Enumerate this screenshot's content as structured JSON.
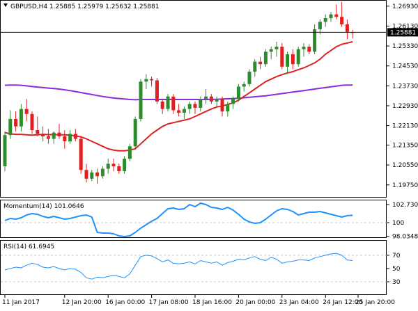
{
  "window": {
    "symbol_line": "GBPUSD,H4  1.25885 1.25979 1.25632 1.25881",
    "collapse_icon": "triangle-down-icon"
  },
  "colors": {
    "bull": "#2e8b2e",
    "bear": "#e02020",
    "ma_fast": "#e02020",
    "ma_slow": "#8a2be2",
    "indicator": "#1e90ff",
    "grid": "#c8c8c8",
    "price_badge_bg": "#000000",
    "price_badge_text": "#ffffff"
  },
  "chart_data": [
    {
      "type": "candlestick",
      "name": "main",
      "ylim": [
        1.1924,
        1.2715
      ],
      "y_ticks": [
        "1.26930",
        "1.26130",
        "1.25330",
        "1.24530",
        "1.23730",
        "1.22930",
        "1.22130",
        "1.21350",
        "1.20550",
        "1.19750"
      ],
      "current_price": "1.25881",
      "candles": [
        [
          1.205,
          1.219,
          1.203,
          1.2175
        ],
        [
          1.2175,
          1.2275,
          1.216,
          1.224
        ],
        [
          1.224,
          1.227,
          1.219,
          1.221
        ],
        [
          1.221,
          1.23,
          1.219,
          1.228
        ],
        [
          1.228,
          1.232,
          1.223,
          1.226
        ],
        [
          1.226,
          1.227,
          1.218,
          1.2195
        ],
        [
          1.2195,
          1.225,
          1.217,
          1.218
        ],
        [
          1.218,
          1.221,
          1.215,
          1.217
        ],
        [
          1.217,
          1.22,
          1.214,
          1.216
        ],
        [
          1.216,
          1.219,
          1.214,
          1.2185
        ],
        [
          1.2185,
          1.222,
          1.216,
          1.217
        ],
        [
          1.217,
          1.2195,
          1.212,
          1.215
        ],
        [
          1.215,
          1.2195,
          1.214,
          1.218
        ],
        [
          1.218,
          1.22,
          1.215,
          1.216
        ],
        [
          1.216,
          1.217,
          1.202,
          1.2035
        ],
        [
          1.2035,
          1.206,
          1.1985,
          1.2
        ],
        [
          1.2,
          1.2035,
          1.199,
          1.2025
        ],
        [
          1.2025,
          1.204,
          1.198,
          1.201
        ],
        [
          1.201,
          1.205,
          1.2,
          1.204
        ],
        [
          1.204,
          1.208,
          1.202,
          1.206
        ],
        [
          1.206,
          1.208,
          1.203,
          1.205
        ],
        [
          1.205,
          1.206,
          1.202,
          1.203
        ],
        [
          1.203,
          1.209,
          1.202,
          1.208
        ],
        [
          1.208,
          1.214,
          1.207,
          1.213
        ],
        [
          1.213,
          1.225,
          1.212,
          1.224
        ],
        [
          1.224,
          1.24,
          1.223,
          1.239
        ],
        [
          1.239,
          1.242,
          1.236,
          1.24
        ],
        [
          1.24,
          1.241,
          1.237,
          1.2395
        ],
        [
          1.2395,
          1.2405,
          1.23,
          1.231
        ],
        [
          1.231,
          1.232,
          1.226,
          1.228
        ],
        [
          1.228,
          1.234,
          1.227,
          1.233
        ],
        [
          1.233,
          1.234,
          1.226,
          1.2275
        ],
        [
          1.2275,
          1.23,
          1.225,
          1.2265
        ],
        [
          1.2265,
          1.229,
          1.224,
          1.228
        ],
        [
          1.228,
          1.231,
          1.226,
          1.23
        ],
        [
          1.23,
          1.231,
          1.226,
          1.2285
        ],
        [
          1.2285,
          1.233,
          1.227,
          1.232
        ],
        [
          1.232,
          1.236,
          1.23,
          1.233
        ],
        [
          1.233,
          1.234,
          1.23,
          1.231
        ],
        [
          1.231,
          1.233,
          1.229,
          1.232
        ],
        [
          1.232,
          1.233,
          1.225,
          1.227
        ],
        [
          1.227,
          1.231,
          1.225,
          1.23
        ],
        [
          1.23,
          1.233,
          1.228,
          1.232
        ],
        [
          1.232,
          1.238,
          1.231,
          1.237
        ],
        [
          1.237,
          1.239,
          1.235,
          1.238
        ],
        [
          1.238,
          1.244,
          1.237,
          1.243
        ],
        [
          1.243,
          1.248,
          1.241,
          1.247
        ],
        [
          1.247,
          1.249,
          1.244,
          1.246
        ],
        [
          1.246,
          1.252,
          1.245,
          1.251
        ],
        [
          1.251,
          1.253,
          1.248,
          1.252
        ],
        [
          1.252,
          1.255,
          1.249,
          1.253
        ],
        [
          1.253,
          1.2545,
          1.244,
          1.245
        ],
        [
          1.245,
          1.251,
          1.242,
          1.25
        ],
        [
          1.25,
          1.252,
          1.244,
          1.246
        ],
        [
          1.246,
          1.253,
          1.245,
          1.252
        ],
        [
          1.252,
          1.2545,
          1.249,
          1.253
        ],
        [
          1.253,
          1.254,
          1.25,
          1.251
        ],
        [
          1.251,
          1.262,
          1.25,
          1.26
        ],
        [
          1.26,
          1.264,
          1.258,
          1.263
        ],
        [
          1.263,
          1.266,
          1.261,
          1.2645
        ],
        [
          1.2645,
          1.267,
          1.263,
          1.266
        ],
        [
          1.266,
          1.27,
          1.264,
          1.265
        ],
        [
          1.265,
          1.271,
          1.261,
          1.262
        ],
        [
          1.262,
          1.264,
          1.256,
          1.259
        ],
        [
          1.25885,
          1.25979,
          1.25632,
          1.25881
        ]
      ],
      "ma_fast": [
        1.2185,
        1.218,
        1.2178,
        1.2178,
        1.2176,
        1.2175,
        1.2176,
        1.2178,
        1.2177,
        1.2177,
        1.2176,
        1.2176,
        1.2175,
        1.2172,
        1.2168,
        1.216,
        1.215,
        1.214,
        1.213,
        1.212,
        1.2115,
        1.2112,
        1.2112,
        1.2115,
        1.212,
        1.214,
        1.216,
        1.218,
        1.2195,
        1.221,
        1.222,
        1.2225,
        1.223,
        1.2235,
        1.224,
        1.225,
        1.226,
        1.227,
        1.228,
        1.2288,
        1.2292,
        1.2298,
        1.2305,
        1.2315,
        1.233,
        1.2345,
        1.236,
        1.2375,
        1.239,
        1.24,
        1.241,
        1.2418,
        1.2425,
        1.243,
        1.2438,
        1.2445,
        1.2455,
        1.2465,
        1.248,
        1.25,
        1.2515,
        1.253,
        1.254,
        1.2545,
        1.255
      ],
      "ma_slow": [
        1.2375,
        1.2376,
        1.2376,
        1.2375,
        1.2373,
        1.237,
        1.2368,
        1.2366,
        1.2364,
        1.2362,
        1.236,
        1.2357,
        1.2354,
        1.235,
        1.2346,
        1.2342,
        1.2338,
        1.2334,
        1.233,
        1.2327,
        1.2324,
        1.2322,
        1.232,
        1.2318,
        1.2317,
        1.2318,
        1.2318,
        1.2318,
        1.2318,
        1.2318,
        1.2318,
        1.2318,
        1.2318,
        1.2318,
        1.2318,
        1.2318,
        1.2318,
        1.2318,
        1.2318,
        1.2319,
        1.232,
        1.2321,
        1.2322,
        1.2323,
        1.2325,
        1.2327,
        1.2329,
        1.2331,
        1.2333,
        1.2336,
        1.2339,
        1.2342,
        1.2345,
        1.2348,
        1.2351,
        1.2354,
        1.2357,
        1.236,
        1.2363,
        1.2366,
        1.2369,
        1.2372,
        1.2375,
        1.2376,
        1.2376
      ],
      "x_ticks": [
        {
          "label": "11 Jan 2017",
          "index": 0
        },
        {
          "label": "12 Jan 20:00",
          "index": 11
        },
        {
          "label": "16 Jan 00:00",
          "index": 19
        },
        {
          "label": "17 Jan 08:00",
          "index": 27
        },
        {
          "label": "18 Jan 16:00",
          "index": 35
        },
        {
          "label": "20 Jan 00:00",
          "index": 43
        },
        {
          "label": "23 Jan 04:00",
          "index": 51
        },
        {
          "label": "24 Jan 12:00",
          "index": 59
        },
        {
          "label": "25 Jan 20:00",
          "index": 65
        }
      ]
    },
    {
      "type": "line",
      "name": "momentum",
      "title": "Momentum(14) 101.0646",
      "ylim": [
        97.8,
        103.2
      ],
      "y_ticks": [
        "102.7304",
        "100",
        "98.0348"
      ],
      "reference_level": 100,
      "values": [
        100.3,
        100.6,
        100.5,
        100.7,
        101.1,
        101.3,
        101.2,
        100.9,
        100.7,
        100.9,
        100.7,
        100.5,
        100.6,
        100.8,
        101.0,
        101.1,
        100.8,
        98.6,
        98.5,
        98.5,
        98.4,
        98.1,
        98.0,
        98.1,
        98.6,
        99.2,
        99.7,
        100.2,
        100.6,
        101.3,
        102.0,
        102.1,
        101.9,
        102.0,
        102.6,
        102.3,
        102.8,
        102.6,
        102.2,
        102.1,
        101.9,
        102.2,
        101.8,
        101.2,
        100.5,
        100.1,
        99.9,
        100.0,
        100.5,
        101.1,
        101.7,
        102.0,
        101.9,
        101.6,
        101.1,
        101.3,
        101.5,
        101.5,
        101.6,
        101.4,
        101.2,
        101.0,
        100.8,
        101.0,
        101.06
      ]
    },
    {
      "type": "line",
      "name": "rsi",
      "title": "RSI(14) 61.6945",
      "ylim": [
        10,
        92
      ],
      "y_ticks": [
        "70",
        "50",
        "30"
      ],
      "levels": [
        70,
        30
      ],
      "values": [
        48,
        50,
        52,
        51,
        55,
        58,
        56,
        52,
        51,
        53,
        50,
        48,
        50,
        49,
        44,
        36,
        34,
        37,
        36,
        38,
        40,
        38,
        36,
        42,
        55,
        68,
        70,
        69,
        65,
        60,
        63,
        58,
        57,
        58,
        60,
        57,
        62,
        60,
        58,
        60,
        55,
        59,
        61,
        64,
        63,
        66,
        68,
        64,
        62,
        67,
        64,
        58,
        60,
        61,
        63,
        63,
        62,
        66,
        68,
        70,
        72,
        73,
        70,
        63,
        62
      ]
    }
  ]
}
